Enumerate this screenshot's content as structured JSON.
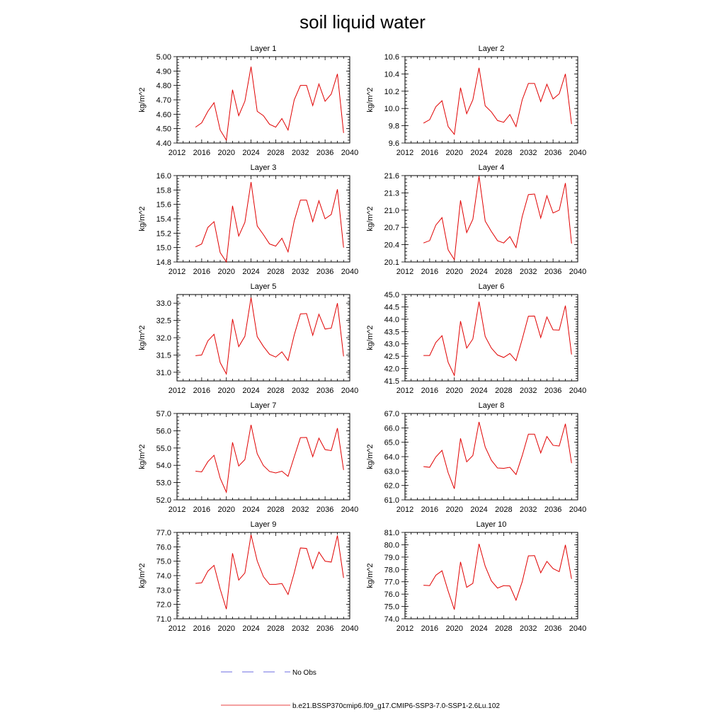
{
  "figure": {
    "title": "soil liquid water",
    "legend": [
      {
        "label": "No Obs",
        "color": "#3b3bd6",
        "style": "dashed"
      },
      {
        "label": "b.e21.BSSP370cmip6.f09_g17.CMIP6-SSP3-7.0-SSP1-2.6Lu.102",
        "color": "#e00000",
        "style": "solid"
      }
    ]
  },
  "chart_data": [
    {
      "type": "line",
      "title": "Layer 1",
      "ylabel": "kg/m^2",
      "xlim": [
        2012,
        2040
      ],
      "ylim": [
        4.4,
        5.0
      ],
      "xticks": [
        "2012",
        "2016",
        "2020",
        "2024",
        "2028",
        "2032",
        "2036",
        "2040"
      ],
      "yticks": [
        "4.40",
        "4.50",
        "4.60",
        "4.70",
        "4.80",
        "4.90",
        "5.00"
      ],
      "x": [
        2015,
        2016,
        2017,
        2018,
        2019,
        2020,
        2021,
        2022,
        2023,
        2024,
        2025,
        2026,
        2027,
        2028,
        2029,
        2030,
        2031,
        2032,
        2033,
        2034,
        2035,
        2036,
        2037,
        2038,
        2039
      ],
      "series": [
        {
          "color": "#e00000",
          "values": [
            4.51,
            4.54,
            4.62,
            4.68,
            4.49,
            4.42,
            4.77,
            4.59,
            4.69,
            4.93,
            4.62,
            4.59,
            4.53,
            4.51,
            4.57,
            4.49,
            4.7,
            4.8,
            4.8,
            4.66,
            4.81,
            4.69,
            4.74,
            4.88,
            4.47
          ]
        }
      ]
    },
    {
      "type": "line",
      "title": "Layer 2",
      "ylabel": "kg/m^2",
      "xlim": [
        2012,
        2040
      ],
      "ylim": [
        9.6,
        10.6
      ],
      "xticks": [
        "2012",
        "2016",
        "2020",
        "2024",
        "2028",
        "2032",
        "2036",
        "2040"
      ],
      "yticks": [
        "9.6",
        "9.8",
        "10.0",
        "10.2",
        "10.4",
        "10.6"
      ],
      "x": [
        2015,
        2016,
        2017,
        2018,
        2019,
        2020,
        2021,
        2022,
        2023,
        2024,
        2025,
        2026,
        2027,
        2028,
        2029,
        2030,
        2031,
        2032,
        2033,
        2034,
        2035,
        2036,
        2037,
        2038,
        2039
      ],
      "series": [
        {
          "color": "#e00000",
          "values": [
            9.83,
            9.87,
            10.02,
            10.09,
            9.79,
            9.7,
            10.24,
            9.94,
            10.1,
            10.47,
            10.03,
            9.96,
            9.86,
            9.84,
            9.93,
            9.79,
            10.1,
            10.29,
            10.29,
            10.08,
            10.28,
            10.11,
            10.17,
            10.4,
            9.82
          ]
        }
      ]
    },
    {
      "type": "line",
      "title": "Layer 3",
      "ylabel": "kg/m^2",
      "xlim": [
        2012,
        2040
      ],
      "ylim": [
        14.8,
        16.0
      ],
      "xticks": [
        "2012",
        "2016",
        "2020",
        "2024",
        "2028",
        "2032",
        "2036",
        "2040"
      ],
      "yticks": [
        "14.8",
        "15.0",
        "15.2",
        "15.4",
        "15.6",
        "15.8",
        "16.0"
      ],
      "x": [
        2015,
        2016,
        2017,
        2018,
        2019,
        2020,
        2021,
        2022,
        2023,
        2024,
        2025,
        2026,
        2027,
        2028,
        2029,
        2030,
        2031,
        2032,
        2033,
        2034,
        2035,
        2036,
        2037,
        2038,
        2039
      ],
      "series": [
        {
          "color": "#e00000",
          "values": [
            15.01,
            15.05,
            15.28,
            15.36,
            14.93,
            14.8,
            15.58,
            15.16,
            15.35,
            15.91,
            15.3,
            15.18,
            15.05,
            15.02,
            15.13,
            14.94,
            15.37,
            15.66,
            15.66,
            15.36,
            15.65,
            15.4,
            15.46,
            15.81,
            15.0
          ]
        }
      ]
    },
    {
      "type": "line",
      "title": "Layer 4",
      "ylabel": "kg/m^2",
      "xlim": [
        2012,
        2040
      ],
      "ylim": [
        20.1,
        21.6
      ],
      "xticks": [
        "2012",
        "2016",
        "2020",
        "2024",
        "2028",
        "2032",
        "2036",
        "2040"
      ],
      "yticks": [
        "20.1",
        "20.4",
        "20.7",
        "21.0",
        "21.3",
        "21.6"
      ],
      "x": [
        2015,
        2016,
        2017,
        2018,
        2019,
        2020,
        2021,
        2022,
        2023,
        2024,
        2025,
        2026,
        2027,
        2028,
        2029,
        2030,
        2031,
        2032,
        2033,
        2034,
        2035,
        2036,
        2037,
        2038,
        2039
      ],
      "series": [
        {
          "color": "#e00000",
          "values": [
            20.43,
            20.47,
            20.74,
            20.87,
            20.31,
            20.14,
            21.17,
            20.61,
            20.84,
            21.59,
            20.81,
            20.63,
            20.47,
            20.43,
            20.54,
            20.35,
            20.89,
            21.27,
            21.28,
            20.86,
            21.25,
            20.95,
            21.0,
            21.47,
            20.42
          ]
        }
      ]
    },
    {
      "type": "line",
      "title": "Layer 5",
      "ylabel": "kg/m^2",
      "xlim": [
        2012,
        2040
      ],
      "ylim": [
        30.75,
        33.25
      ],
      "xticks": [
        "2012",
        "2016",
        "2020",
        "2024",
        "2028",
        "2032",
        "2036",
        "2040"
      ],
      "yticks": [
        "31.0",
        "31.5",
        "32.0",
        "32.5",
        "33.0"
      ],
      "x": [
        2015,
        2016,
        2017,
        2018,
        2019,
        2020,
        2021,
        2022,
        2023,
        2024,
        2025,
        2026,
        2027,
        2028,
        2029,
        2030,
        2031,
        2032,
        2033,
        2034,
        2035,
        2036,
        2037,
        2038,
        2039
      ],
      "series": [
        {
          "color": "#e00000",
          "values": [
            31.48,
            31.5,
            31.91,
            32.1,
            31.28,
            30.95,
            32.54,
            31.74,
            32.04,
            33.16,
            32.03,
            31.75,
            31.52,
            31.44,
            31.59,
            31.34,
            32.08,
            32.69,
            32.7,
            32.07,
            32.68,
            32.25,
            32.28,
            33.0,
            31.46
          ]
        }
      ]
    },
    {
      "type": "line",
      "title": "Layer 6",
      "ylabel": "kg/m^2",
      "xlim": [
        2012,
        2040
      ],
      "ylim": [
        41.5,
        45.0
      ],
      "xticks": [
        "2012",
        "2016",
        "2020",
        "2024",
        "2028",
        "2032",
        "2036",
        "2040"
      ],
      "yticks": [
        "41.5",
        "42.0",
        "42.5",
        "43.0",
        "43.5",
        "44.0",
        "44.5",
        "45.0"
      ],
      "x": [
        2015,
        2016,
        2017,
        2018,
        2019,
        2020,
        2021,
        2022,
        2023,
        2024,
        2025,
        2026,
        2027,
        2028,
        2029,
        2030,
        2031,
        2032,
        2033,
        2034,
        2035,
        2036,
        2037,
        2038,
        2039
      ],
      "series": [
        {
          "color": "#e00000",
          "values": [
            42.53,
            42.53,
            43.06,
            43.33,
            42.25,
            41.72,
            43.92,
            42.83,
            43.2,
            44.71,
            43.3,
            42.83,
            42.55,
            42.45,
            42.61,
            42.32,
            43.19,
            44.12,
            44.13,
            43.26,
            44.09,
            43.57,
            43.56,
            44.55,
            42.57
          ]
        }
      ]
    },
    {
      "type": "line",
      "title": "Layer 7",
      "ylabel": "kg/m^2",
      "xlim": [
        2012,
        2040
      ],
      "ylim": [
        52.0,
        57.0
      ],
      "xticks": [
        "2012",
        "2016",
        "2020",
        "2024",
        "2028",
        "2032",
        "2036",
        "2040"
      ],
      "yticks": [
        "52.0",
        "53.0",
        "54.0",
        "55.0",
        "56.0",
        "57.0"
      ],
      "x": [
        2015,
        2016,
        2017,
        2018,
        2019,
        2020,
        2021,
        2022,
        2023,
        2024,
        2025,
        2026,
        2027,
        2028,
        2029,
        2030,
        2031,
        2032,
        2033,
        2034,
        2035,
        2036,
        2037,
        2038,
        2039
      ],
      "series": [
        {
          "color": "#e00000",
          "values": [
            53.66,
            53.62,
            54.21,
            54.58,
            53.25,
            52.44,
            55.33,
            53.96,
            54.33,
            56.34,
            54.67,
            53.99,
            53.64,
            53.56,
            53.66,
            53.36,
            54.49,
            55.6,
            55.61,
            54.5,
            55.57,
            54.91,
            54.85,
            56.15,
            53.73
          ]
        }
      ]
    },
    {
      "type": "line",
      "title": "Layer 8",
      "ylabel": "kg/m^2",
      "xlim": [
        2012,
        2040
      ],
      "ylim": [
        61.0,
        67.0
      ],
      "xticks": [
        "2012",
        "2016",
        "2020",
        "2024",
        "2028",
        "2032",
        "2036",
        "2040"
      ],
      "yticks": [
        "61.0",
        "62.0",
        "63.0",
        "64.0",
        "65.0",
        "66.0",
        "67.0"
      ],
      "x": [
        2015,
        2016,
        2017,
        2018,
        2019,
        2020,
        2021,
        2022,
        2023,
        2024,
        2025,
        2026,
        2027,
        2028,
        2029,
        2030,
        2031,
        2032,
        2033,
        2034,
        2035,
        2036,
        2037,
        2038,
        2039
      ],
      "series": [
        {
          "color": "#e00000",
          "values": [
            63.31,
            63.26,
            63.98,
            64.44,
            62.88,
            61.77,
            65.27,
            63.64,
            64.08,
            66.41,
            64.67,
            63.75,
            63.21,
            63.19,
            63.26,
            62.76,
            64.07,
            65.56,
            65.56,
            64.26,
            65.4,
            64.79,
            64.74,
            66.28,
            63.55
          ]
        }
      ]
    },
    {
      "type": "line",
      "title": "Layer 9",
      "ylabel": "kg/m^2",
      "xlim": [
        2012,
        2040
      ],
      "ylim": [
        71.0,
        77.0
      ],
      "xticks": [
        "2012",
        "2016",
        "2020",
        "2024",
        "2028",
        "2032",
        "2036",
        "2040"
      ],
      "yticks": [
        "71.0",
        "72.0",
        "73.0",
        "74.0",
        "75.0",
        "76.0",
        "77.0"
      ],
      "x": [
        2015,
        2016,
        2017,
        2018,
        2019,
        2020,
        2021,
        2022,
        2023,
        2024,
        2025,
        2026,
        2027,
        2028,
        2029,
        2030,
        2031,
        2032,
        2033,
        2034,
        2035,
        2036,
        2037,
        2038,
        2039
      ],
      "series": [
        {
          "color": "#e00000",
          "values": [
            73.46,
            73.5,
            74.31,
            74.71,
            73.06,
            71.67,
            75.55,
            73.69,
            74.18,
            76.83,
            75.02,
            73.93,
            73.39,
            73.39,
            73.45,
            72.69,
            74.19,
            75.92,
            75.89,
            74.49,
            75.63,
            75.0,
            74.94,
            76.79,
            73.84
          ]
        }
      ]
    },
    {
      "type": "line",
      "title": "Layer 10",
      "ylabel": "kg/m^2",
      "xlim": [
        2012,
        2040
      ],
      "ylim": [
        74.0,
        81.0
      ],
      "xticks": [
        "2012",
        "2016",
        "2020",
        "2024",
        "2028",
        "2032",
        "2036",
        "2040"
      ],
      "yticks": [
        "74.0",
        "75.0",
        "76.0",
        "77.0",
        "78.0",
        "79.0",
        "80.0",
        "81.0"
      ],
      "x": [
        2015,
        2016,
        2017,
        2018,
        2019,
        2020,
        2021,
        2022,
        2023,
        2024,
        2025,
        2026,
        2027,
        2028,
        2029,
        2030,
        2031,
        2032,
        2033,
        2034,
        2035,
        2036,
        2037,
        2038,
        2039
      ],
      "series": [
        {
          "color": "#e00000",
          "values": [
            76.72,
            76.69,
            77.53,
            77.89,
            76.24,
            74.75,
            78.61,
            76.55,
            76.87,
            80.07,
            78.26,
            77.07,
            76.49,
            76.69,
            76.66,
            75.51,
            77.0,
            79.1,
            79.12,
            77.73,
            78.65,
            78.07,
            77.82,
            79.99,
            77.23
          ]
        }
      ]
    }
  ]
}
